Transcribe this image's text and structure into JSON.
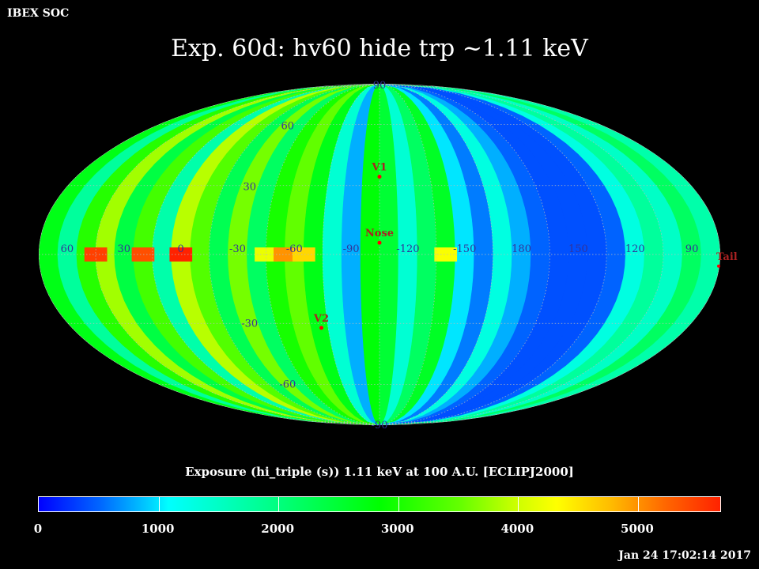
{
  "header": {
    "org": "IBEX SOC",
    "title": "Exp.   60d: hv60 hide trp ~1.11 keV"
  },
  "map": {
    "projection": "Mollweide",
    "center_longitude": 255,
    "longitude_labels": [
      "60",
      "30",
      "0",
      "-30",
      "-60",
      "-90",
      "-120",
      "-150",
      "180",
      "150",
      "120",
      "90"
    ],
    "latitude_labels": [
      "90",
      "60",
      "30",
      "-30",
      "-60",
      "-90"
    ],
    "markers": [
      {
        "label": "V1",
        "lon": 255,
        "lat": 34
      },
      {
        "label": "Nose",
        "lon": 255,
        "lat": 5
      },
      {
        "label": "V2",
        "lon": 289,
        "lat": -32
      },
      {
        "label": "Tail",
        "lon": 75,
        "lat": -5
      }
    ],
    "colors": {
      "grid": "#bbbbbb",
      "marker": "#ff0000",
      "label": "#333399",
      "marker_label": "#aa2222"
    }
  },
  "caption": "Exposure (hi_triple (s))  1.11 keV at 100 A.U. [ECLIPJ2000]",
  "colorbar": {
    "min": 0,
    "max": 5700,
    "ticks": [
      "0",
      "1000",
      "2000",
      "3000",
      "4000",
      "5000"
    ]
  },
  "chart_data": {
    "type": "heatmap",
    "title": "Exp.   60d: hv60 hide trp ~1.11 keV",
    "value_label": "Exposure (hi_triple (s))  1.11 keV at 100 A.U. [ECLIPJ2000]",
    "range": [
      0,
      5700
    ],
    "bands_by_longitude": [
      {
        "lon": [
          65,
          75
        ],
        "value": 2700
      },
      {
        "lon": [
          55,
          65
        ],
        "value": 1800
      },
      {
        "lon": [
          45,
          55
        ],
        "value": 3100
      },
      {
        "lon": [
          35,
          45
        ],
        "value": 3800
      },
      {
        "lon": [
          25,
          35
        ],
        "value": 2400
      },
      {
        "lon": [
          15,
          25
        ],
        "value": 3300
      },
      {
        "lon": [
          5,
          15
        ],
        "value": 1700
      },
      {
        "lon": [
          -5,
          5
        ],
        "value": 3900
      },
      {
        "lon": [
          -15,
          -5
        ],
        "value": 3400
      },
      {
        "lon": [
          -25,
          -15
        ],
        "value": 2300
      },
      {
        "lon": [
          -35,
          -25
        ],
        "value": 3600
      },
      {
        "lon": [
          -45,
          -35
        ],
        "value": 2200
      },
      {
        "lon": [
          -55,
          -45
        ],
        "value": 3000
      },
      {
        "lon": [
          -65,
          -55
        ],
        "value": 3500
      },
      {
        "lon": [
          -75,
          -65
        ],
        "value": 2700
      },
      {
        "lon": [
          -85,
          -75
        ],
        "value": 1400
      },
      {
        "lon": [
          -95,
          -85
        ],
        "value": 800
      },
      {
        "lon": [
          -105,
          -95
        ],
        "value": 2800
      },
      {
        "lon": [
          -115,
          -105
        ],
        "value": 2500
      },
      {
        "lon": [
          -125,
          -115
        ],
        "value": 1400
      },
      {
        "lon": [
          -135,
          -125
        ],
        "value": 2200
      },
      {
        "lon": [
          -145,
          -135
        ],
        "value": 2600
      },
      {
        "lon": [
          -155,
          -145
        ],
        "value": 1000
      },
      {
        "lon": [
          -165,
          -155
        ],
        "value": 600
      },
      {
        "lon": [
          -175,
          -165
        ],
        "value": 1300
      },
      {
        "lon": [
          175,
          185
        ],
        "value": 800
      },
      {
        "lon": [
          165,
          175
        ],
        "value": 500
      },
      {
        "lon": [
          155,
          165
        ],
        "value": 400
      },
      {
        "lon": [
          145,
          155
        ],
        "value": 400
      },
      {
        "lon": [
          135,
          145
        ],
        "value": 400
      },
      {
        "lon": [
          125,
          135
        ],
        "value": 500
      },
      {
        "lon": [
          115,
          125
        ],
        "value": 1300
      },
      {
        "lon": [
          105,
          115
        ],
        "value": 1800
      },
      {
        "lon": [
          95,
          105
        ],
        "value": 1500
      },
      {
        "lon": [
          85,
          95
        ],
        "value": 2200
      },
      {
        "lon": [
          75,
          85
        ],
        "value": 1700
      }
    ],
    "ecliptic_strip_highlights": [
      {
        "lon": 45,
        "value": 5500
      },
      {
        "lon": 20,
        "value": 5400
      },
      {
        "lon": 0,
        "value": 5700
      },
      {
        "lon": -45,
        "value": 4200
      },
      {
        "lon": -55,
        "value": 5000
      },
      {
        "lon": -65,
        "value": 4600
      },
      {
        "lon": -140,
        "value": 4300
      }
    ]
  }
}
